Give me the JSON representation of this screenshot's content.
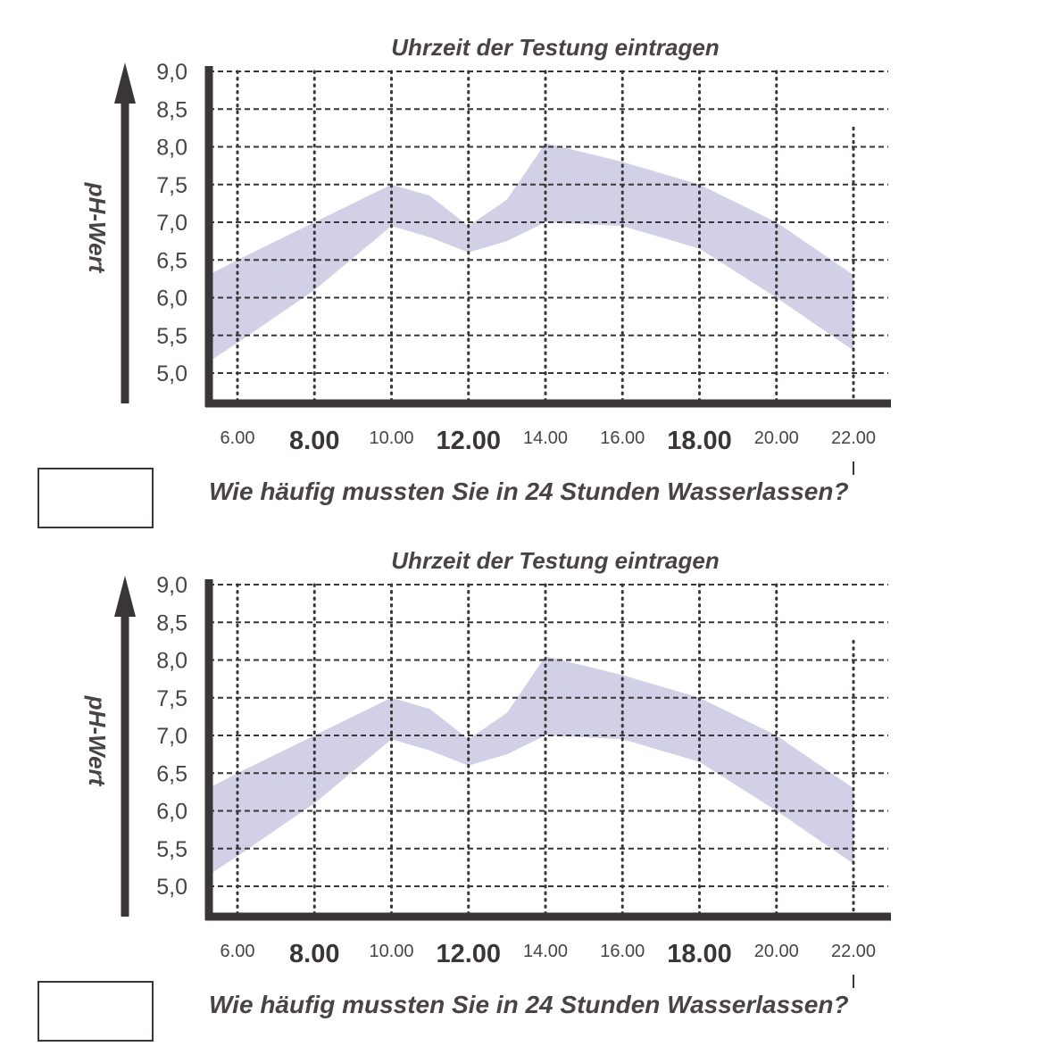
{
  "chart_data": [
    {
      "type": "area",
      "title": "Uhrzeit der Testung eintragen",
      "ylabel": "pH-Wert",
      "xlabel": "",
      "ylim": [
        5.0,
        9.0
      ],
      "y_ticks": [
        "9,0",
        "8,5",
        "8,0",
        "7,5",
        "7,0",
        "6,5",
        "6,0",
        "5,5",
        "5,0"
      ],
      "x_ticks": [
        {
          "hour": 6,
          "label": "6.00",
          "emphasis": false
        },
        {
          "hour": 8,
          "label": "8.00",
          "emphasis": true
        },
        {
          "hour": 10,
          "label": "10.00",
          "emphasis": false
        },
        {
          "hour": 12,
          "label": "12.00",
          "emphasis": true
        },
        {
          "hour": 14,
          "label": "14.00",
          "emphasis": false
        },
        {
          "hour": 16,
          "label": "16.00",
          "emphasis": false
        },
        {
          "hour": 18,
          "label": "18.00",
          "emphasis": true
        },
        {
          "hour": 20,
          "label": "20.00",
          "emphasis": false
        },
        {
          "hour": 22,
          "label": "22.00",
          "emphasis": false
        }
      ],
      "grid": true,
      "band_color": "#c9c8e3",
      "band_upper": [
        [
          5.25,
          6.3
        ],
        [
          6,
          6.5
        ],
        [
          8,
          7.0
        ],
        [
          10,
          7.5
        ],
        [
          11,
          7.35
        ],
        [
          12,
          6.95
        ],
        [
          13,
          7.3
        ],
        [
          14,
          8.05
        ],
        [
          16,
          7.8
        ],
        [
          18,
          7.5
        ],
        [
          20,
          7.0
        ],
        [
          22,
          6.3
        ]
      ],
      "band_lower": [
        [
          5.25,
          5.15
        ],
        [
          6,
          5.4
        ],
        [
          8,
          6.1
        ],
        [
          10,
          6.95
        ],
        [
          11,
          6.8
        ],
        [
          12,
          6.6
        ],
        [
          13,
          6.75
        ],
        [
          14,
          7.0
        ],
        [
          16,
          6.95
        ],
        [
          18,
          6.65
        ],
        [
          20,
          6.0
        ],
        [
          22,
          5.3
        ]
      ]
    },
    {
      "type": "area",
      "title": "Uhrzeit der Testung eintragen",
      "ylabel": "pH-Wert",
      "xlabel": "",
      "ylim": [
        5.0,
        9.0
      ],
      "y_ticks": [
        "9,0",
        "8,5",
        "8,0",
        "7,5",
        "7,0",
        "6,5",
        "6,0",
        "5,5",
        "5,0"
      ],
      "x_ticks": [
        {
          "hour": 6,
          "label": "6.00",
          "emphasis": false
        },
        {
          "hour": 8,
          "label": "8.00",
          "emphasis": true
        },
        {
          "hour": 10,
          "label": "10.00",
          "emphasis": false
        },
        {
          "hour": 12,
          "label": "12.00",
          "emphasis": true
        },
        {
          "hour": 14,
          "label": "14.00",
          "emphasis": false
        },
        {
          "hour": 16,
          "label": "16.00",
          "emphasis": false
        },
        {
          "hour": 18,
          "label": "18.00",
          "emphasis": true
        },
        {
          "hour": 20,
          "label": "20.00",
          "emphasis": false
        },
        {
          "hour": 22,
          "label": "22.00",
          "emphasis": false
        }
      ],
      "grid": true,
      "band_color": "#c9c8e3",
      "band_upper": [
        [
          5.25,
          6.3
        ],
        [
          6,
          6.5
        ],
        [
          8,
          7.0
        ],
        [
          10,
          7.5
        ],
        [
          11,
          7.35
        ],
        [
          12,
          6.95
        ],
        [
          13,
          7.3
        ],
        [
          14,
          8.05
        ],
        [
          16,
          7.8
        ],
        [
          18,
          7.5
        ],
        [
          20,
          7.0
        ],
        [
          22,
          6.3
        ]
      ],
      "band_lower": [
        [
          5.25,
          5.15
        ],
        [
          6,
          5.4
        ],
        [
          8,
          6.1
        ],
        [
          10,
          6.95
        ],
        [
          11,
          6.8
        ],
        [
          12,
          6.6
        ],
        [
          13,
          6.75
        ],
        [
          14,
          7.0
        ],
        [
          16,
          6.95
        ],
        [
          18,
          6.65
        ],
        [
          20,
          6.0
        ],
        [
          22,
          5.3
        ]
      ]
    }
  ],
  "questions": [
    {
      "text": "Wie häufig mussten Sie in 24 Stunden Wasserlassen?"
    },
    {
      "text": "Wie häufig mussten Sie in 24 Stunden Wasserlassen?"
    }
  ],
  "colors": {
    "ink": "#3a3536",
    "text": "#4a4344",
    "band": "#c9c8e3"
  }
}
